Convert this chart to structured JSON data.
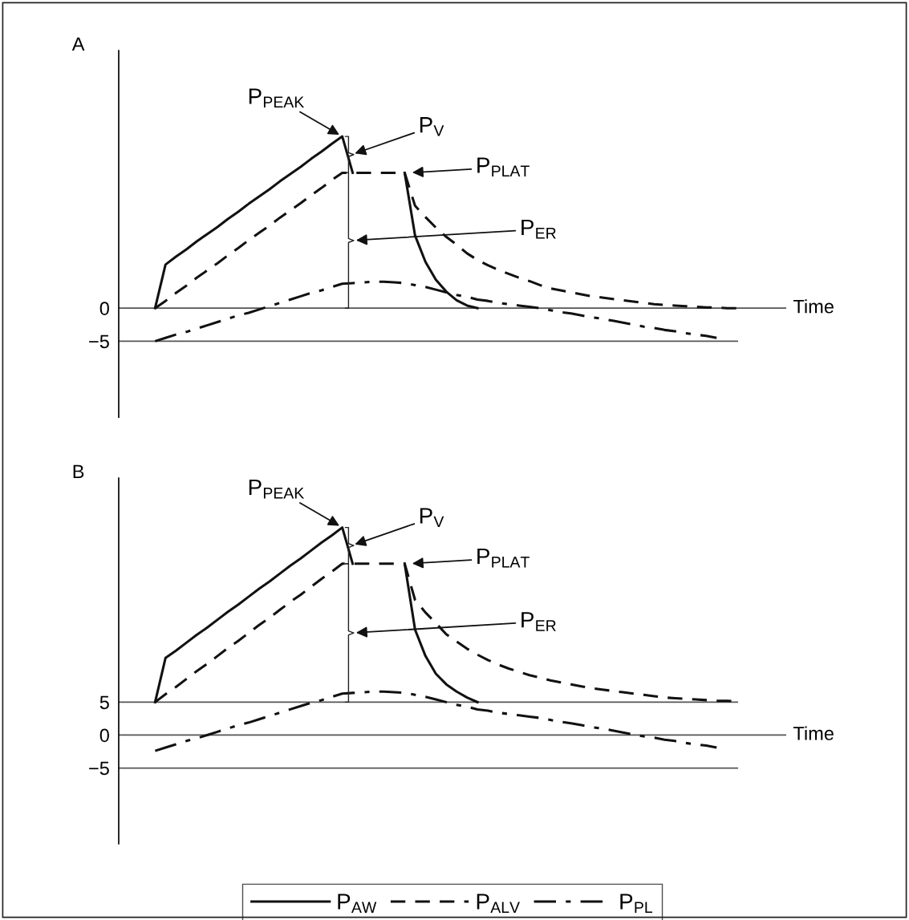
{
  "chart_data": [
    {
      "type": "line",
      "title": "A",
      "categories": [
        null,
        null,
        null,
        null,
        null,
        null,
        null,
        null,
        null,
        null,
        null,
        null,
        null,
        null,
        null,
        null,
        null,
        null,
        null,
        null,
        null,
        null,
        null,
        null,
        null,
        null,
        null,
        null,
        null,
        null,
        null,
        null,
        null,
        null,
        null,
        null,
        null,
        null,
        null,
        null,
        null,
        null,
        null,
        null,
        null,
        null,
        null,
        null,
        null,
        null,
        null,
        null,
        null,
        null,
        null,
        null,
        null
      ],
      "ylim": [
        -16.5,
        39
      ],
      "yticks": [
        0,
        {
          "value": -5,
          "label": "−5"
        }
      ],
      "tick_labels": "y",
      "marker": "none",
      "ref_lines": [
        {
          "axis": "y",
          "value": 0,
          "label": "Time",
          "color": "#555555"
        },
        {
          "axis": "y",
          "value": -5,
          "color": "#555555"
        }
      ],
      "annotations": [
        "P$_{PEAK}$",
        "P$_{V}$",
        "P$_{PLAT}$",
        "P$_{ER}$"
      ],
      "series": [
        {
          "color": "#111111",
          "line_style": "solid",
          "values": [
            0,
            6.6,
            7.8,
            8.9,
            10.1,
            11.2,
            12.3,
            13.5,
            14.6,
            15.8,
            16.9,
            18.0,
            19.2,
            20.3,
            21.4,
            22.6,
            23.7,
            24.9,
            26,
            20.5,
            null,
            null,
            null,
            null,
            20.5,
            11,
            7,
            4.3,
            2.5,
            1.2,
            0.4,
            0,
            null,
            null,
            null,
            null,
            null,
            null,
            null,
            null,
            null,
            null,
            null,
            null,
            null,
            null,
            null,
            null,
            null,
            null,
            null,
            null,
            null,
            null,
            null,
            null,
            null
          ]
        },
        {
          "color": "#111111",
          "line_style": "dashed",
          "values": [
            0,
            1.1,
            2.3,
            3.4,
            4.6,
            5.7,
            6.8,
            8.0,
            9.1,
            10.3,
            11.4,
            12.5,
            13.7,
            14.8,
            15.9,
            17.1,
            18.2,
            19.4,
            20.5,
            20.5,
            20.5,
            20.5,
            20.5,
            20.5,
            20.5,
            15.5,
            13.8,
            12.2,
            10.8,
            9.6,
            8.3,
            7.3,
            6.5,
            5.8,
            5.2,
            4.6,
            4.1,
            3.5,
            3.0,
            2.7,
            2.4,
            2.1,
            1.8,
            1.6,
            1.4,
            1.2,
            1.0,
            0.8,
            0.6,
            0.5,
            0.4,
            0.3,
            0.2,
            0.1,
            0.1,
            0,
            0
          ]
        },
        {
          "color": "#111111",
          "line_style": "dashdot",
          "values": [
            -5,
            -4.5,
            -4.0,
            -3.6,
            -3.1,
            -2.6,
            -2.1,
            -1.6,
            -1.1,
            -0.7,
            -0.2,
            0.3,
            0.8,
            1.3,
            1.8,
            2.3,
            2.7,
            3.2,
            3.7,
            3.8,
            3.9,
            4.0,
            4.0,
            3.9,
            3.8,
            3.5,
            3.2,
            2.8,
            2.4,
            2.0,
            1.7,
            1.3,
            1.1,
            0.8,
            0.6,
            0.4,
            0.2,
            0,
            -0.3,
            -0.6,
            -0.8,
            -1.1,
            -1.4,
            -1.6,
            -1.9,
            -2.2,
            -2.5,
            -2.8,
            -3.0,
            -3.3,
            -3.5,
            -3.8,
            -4.0,
            -4.2,
            -4.5,
            null,
            null
          ]
        }
      ]
    },
    {
      "type": "line",
      "title": "B",
      "categories": [
        null,
        null,
        null,
        null,
        null,
        null,
        null,
        null,
        null,
        null,
        null,
        null,
        null,
        null,
        null,
        null,
        null,
        null,
        null,
        null,
        null,
        null,
        null,
        null,
        null,
        null,
        null,
        null,
        null,
        null,
        null,
        null,
        null,
        null,
        null,
        null,
        null,
        null,
        null,
        null,
        null,
        null,
        null,
        null,
        null,
        null,
        null,
        null,
        null,
        null,
        null,
        null,
        null,
        null,
        null,
        null,
        null
      ],
      "ylim": [
        -16.5,
        39
      ],
      "yticks": [
        5,
        0,
        {
          "value": -5,
          "label": "−5"
        }
      ],
      "tick_labels": "y",
      "legend": "bottom",
      "marker": "none",
      "ref_lines": [
        {
          "axis": "y",
          "value": 0,
          "label": "Time",
          "color": "#555555"
        },
        {
          "axis": "y",
          "value": 5,
          "color": "#555555"
        },
        {
          "axis": "y",
          "value": -5,
          "color": "#555555"
        }
      ],
      "annotations": [
        "P$_{PEAK}$",
        "P$_{V}$",
        "P$_{PLAT}$",
        "P$_{ER}$"
      ],
      "series": [
        {
          "name": "P$_{AW}$",
          "color": "#111111",
          "line_style": "solid",
          "values": [
            5,
            11.7,
            12.8,
            14.0,
            15.2,
            16.3,
            17.5,
            18.7,
            19.8,
            21.0,
            22.2,
            23.3,
            24.5,
            25.7,
            26.8,
            28.0,
            29.2,
            30.3,
            31.5,
            26,
            null,
            null,
            null,
            null,
            26,
            16,
            12,
            9.3,
            7.7,
            6.6,
            5.7,
            5,
            null,
            null,
            null,
            null,
            null,
            null,
            null,
            null,
            null,
            null,
            null,
            null,
            null,
            null,
            null,
            null,
            null,
            null,
            null,
            null,
            null,
            null,
            null,
            null,
            null
          ]
        },
        {
          "name": "P$_{ALV}$",
          "color": "#111111",
          "line_style": "dashed",
          "values": [
            5,
            6.2,
            7.3,
            8.5,
            9.7,
            10.8,
            12.0,
            13.2,
            14.3,
            15.5,
            16.7,
            17.8,
            19.0,
            20.2,
            21.3,
            22.5,
            23.7,
            24.8,
            26,
            26,
            26,
            26,
            26,
            26,
            26,
            20.5,
            18.6,
            17,
            15.3,
            14.2,
            13.1,
            12.2,
            11.4,
            10.7,
            10.1,
            9.6,
            9.1,
            8.7,
            8.3,
            8.0,
            7.7,
            7.4,
            7.1,
            6.9,
            6.7,
            6.5,
            6.3,
            6.1,
            5.9,
            5.7,
            5.6,
            5.5,
            5.4,
            5.3,
            5.2,
            5.2,
            5.1
          ]
        },
        {
          "name": "P$_{PL}$",
          "color": "#111111",
          "line_style": "dashdot",
          "values": [
            -2.4,
            -1.9,
            -1.4,
            -0.9,
            -0.5,
            0,
            0.5,
            1.0,
            1.5,
            1.9,
            2.4,
            2.9,
            3.4,
            3.9,
            4.4,
            4.9,
            5.3,
            5.8,
            6.3,
            6.4,
            6.5,
            6.6,
            6.6,
            6.5,
            6.4,
            6.1,
            5.8,
            5.4,
            5.0,
            4.6,
            4.3,
            3.9,
            3.7,
            3.4,
            3.2,
            3.0,
            2.8,
            2.6,
            2.3,
            2.0,
            1.8,
            1.5,
            1.2,
            1.0,
            0.7,
            0.4,
            0.1,
            -0.2,
            -0.4,
            -0.7,
            -0.9,
            -1.2,
            -1.4,
            -1.6,
            -1.9,
            null,
            null
          ]
        }
      ]
    }
  ]
}
